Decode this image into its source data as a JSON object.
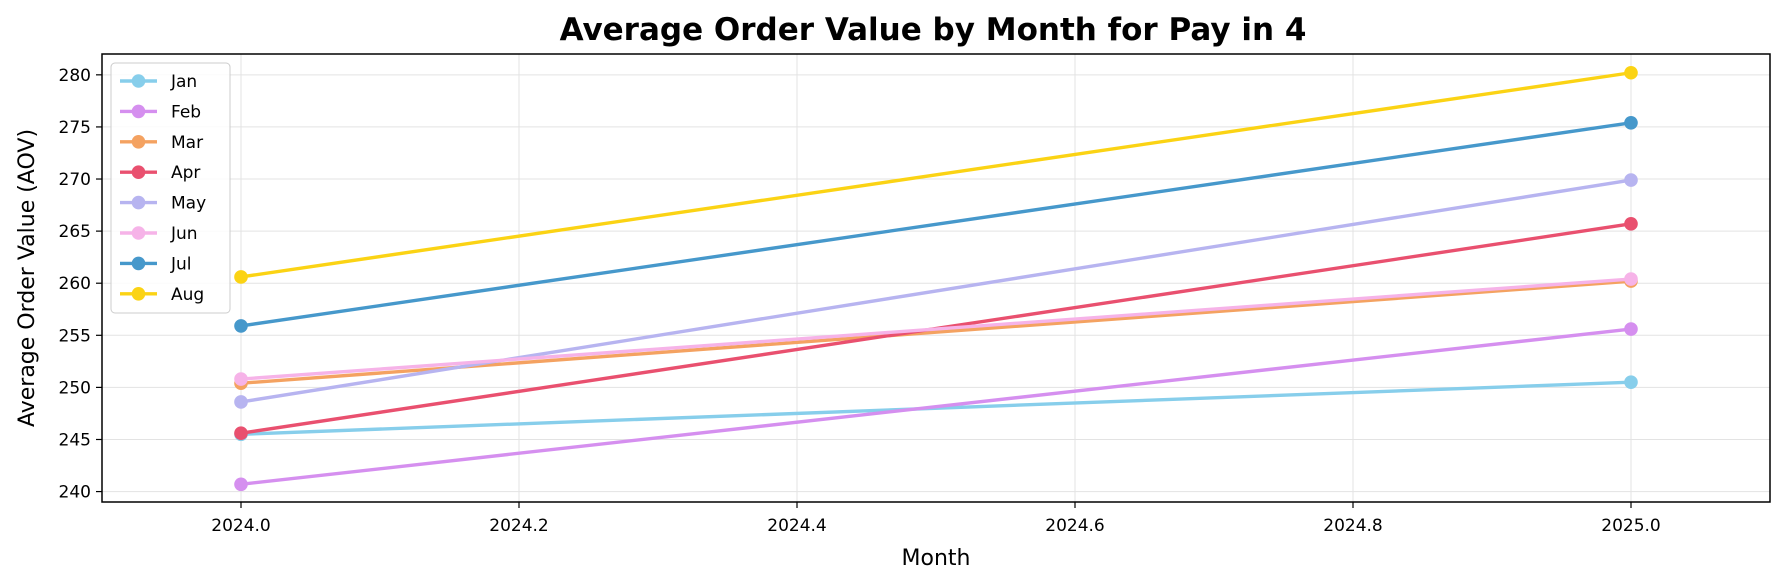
{
  "chart_data": {
    "type": "line",
    "title": "Average Order Value by Month for Pay in 4",
    "xlabel": "Month",
    "ylabel": "Average Order Value (AOV)",
    "x": [
      2024.0,
      2025.0
    ],
    "xlim": [
      2023.9,
      2025.1
    ],
    "ylim": [
      239,
      282
    ],
    "xticks": [
      "2024.0",
      "2024.2",
      "2024.4",
      "2024.6",
      "2024.8",
      "2025.0"
    ],
    "xtick_values": [
      2024.0,
      2024.2,
      2024.4,
      2024.6,
      2024.8,
      2025.0
    ],
    "yticks": [
      "240",
      "245",
      "250",
      "255",
      "260",
      "265",
      "270",
      "275",
      "280"
    ],
    "ytick_values": [
      240,
      245,
      250,
      255,
      260,
      265,
      270,
      275,
      280
    ],
    "grid": true,
    "legend_position": "top-left",
    "series": [
      {
        "name": "Jan",
        "color": "#87CEEB",
        "values": [
          245.5,
          250.5
        ]
      },
      {
        "name": "Feb",
        "color": "#D58FEF",
        "values": [
          240.7,
          255.6
        ]
      },
      {
        "name": "Mar",
        "color": "#F4A261",
        "values": [
          250.4,
          260.2
        ]
      },
      {
        "name": "Apr",
        "color": "#E9506F",
        "values": [
          245.6,
          265.7
        ]
      },
      {
        "name": "May",
        "color": "#B7B4F0",
        "values": [
          248.6,
          269.9
        ]
      },
      {
        "name": "Jun",
        "color": "#F6B3E8",
        "values": [
          250.8,
          260.4
        ]
      },
      {
        "name": "Jul",
        "color": "#4698CB",
        "values": [
          255.9,
          275.4
        ]
      },
      {
        "name": "Aug",
        "color": "#FBD314",
        "values": [
          260.6,
          280.2
        ]
      }
    ]
  }
}
